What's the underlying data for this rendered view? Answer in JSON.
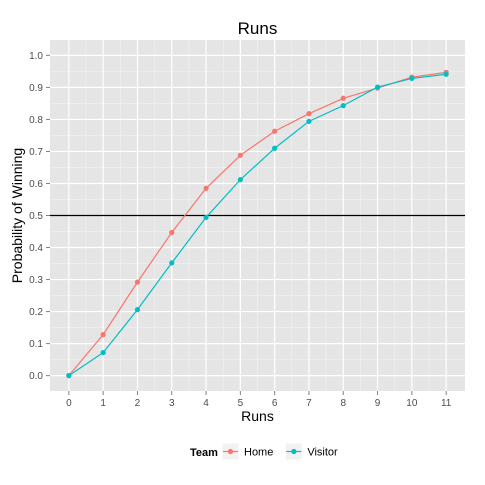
{
  "chart_data": {
    "type": "line",
    "title": "Runs",
    "xlabel": "Runs",
    "ylabel": "Probability of Winning",
    "x": [
      0,
      1,
      2,
      3,
      4,
      5,
      6,
      7,
      8,
      9,
      10,
      11
    ],
    "xlim": [
      -0.55,
      11.55
    ],
    "ylim": [
      -0.048,
      1.048
    ],
    "x_ticks": [
      "0",
      "1",
      "2",
      "3",
      "4",
      "5",
      "6",
      "7",
      "8",
      "9",
      "10",
      "11"
    ],
    "y_ticks": [
      "0.0",
      "0.1",
      "0.2",
      "0.3",
      "0.4",
      "0.5",
      "0.6",
      "0.7",
      "0.8",
      "0.9",
      "1.0"
    ],
    "reference_line": {
      "y": 0.5,
      "color": "#000000"
    },
    "grid": true,
    "legend": {
      "title": "Team",
      "position": "bottom",
      "entries": [
        "Home",
        "Visitor"
      ]
    },
    "series": [
      {
        "name": "Home",
        "color": "#F8766D",
        "values": [
          0.0,
          0.128,
          0.292,
          0.447,
          0.585,
          0.688,
          0.763,
          0.818,
          0.866,
          0.898,
          0.932,
          0.947
        ]
      },
      {
        "name": "Visitor",
        "color": "#00BFC4",
        "values": [
          0.0,
          0.072,
          0.206,
          0.352,
          0.494,
          0.612,
          0.71,
          0.794,
          0.843,
          0.901,
          0.928,
          0.941
        ]
      }
    ]
  }
}
